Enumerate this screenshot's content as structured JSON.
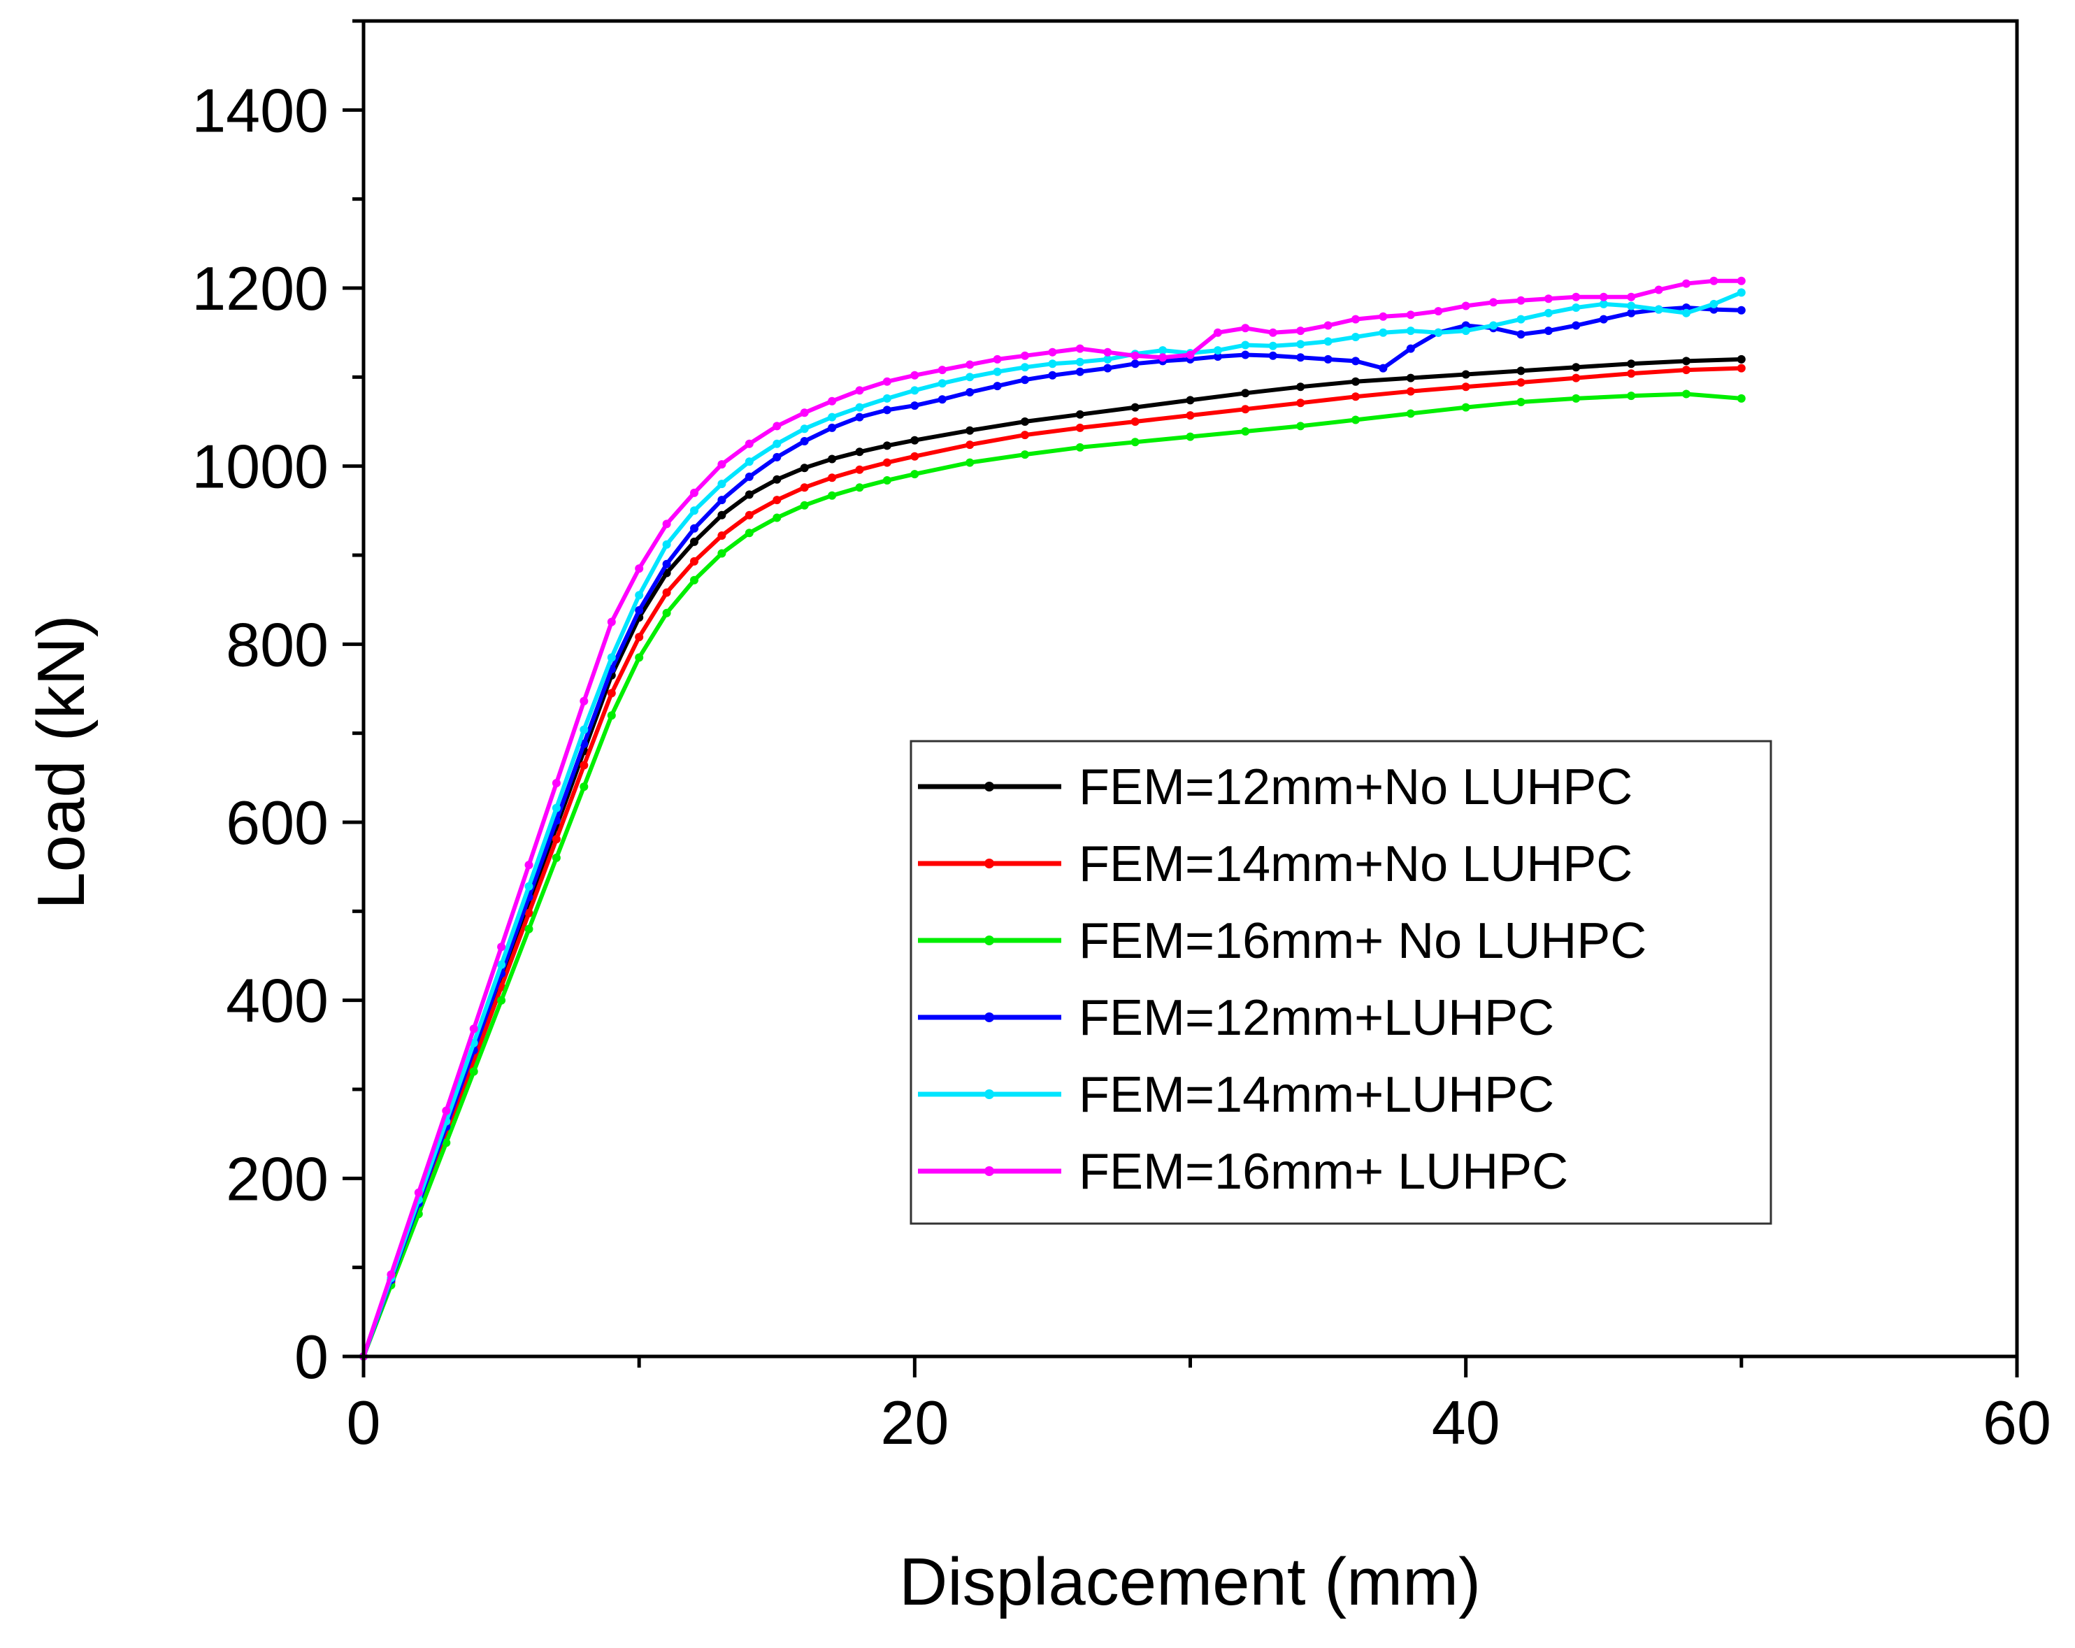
{
  "chart_data": {
    "type": "line",
    "title": "",
    "xlabel": "Displacement (mm)",
    "ylabel": "Load (kN)",
    "xlim": [
      0,
      60
    ],
    "ylim": [
      0,
      1500
    ],
    "xticks": [
      0,
      20,
      40,
      60
    ],
    "yticks": [
      0,
      200,
      400,
      600,
      800,
      1000,
      1200,
      1400
    ],
    "x_tick_labels": [
      "0",
      "20",
      "40",
      "60"
    ],
    "y_tick_labels": [
      "0",
      "200",
      "400",
      "600",
      "800",
      "1000",
      "1200",
      "1400"
    ],
    "grid": false,
    "legend_position": "center-right",
    "series": [
      {
        "name": "FEM=12mm+No LUHPC",
        "color": "#000000",
        "x": [
          0,
          1,
          2,
          3,
          4,
          5,
          6,
          7,
          8,
          9,
          10,
          11,
          12,
          13,
          14,
          15,
          16,
          17,
          18,
          19,
          20,
          22,
          24,
          26,
          28,
          30,
          32,
          34,
          36,
          38,
          40,
          42,
          44,
          46,
          48,
          50
        ],
        "y": [
          0,
          85,
          170,
          255,
          340,
          425,
          510,
          595,
          680,
          765,
          830,
          880,
          915,
          945,
          968,
          985,
          998,
          1008,
          1016,
          1023,
          1029,
          1040,
          1050,
          1058,
          1066,
          1074,
          1082,
          1089,
          1095,
          1099,
          1103,
          1107,
          1111,
          1115,
          1118,
          1120
        ]
      },
      {
        "name": "FEM=14mm+No LUHPC",
        "color": "#ff0000",
        "x": [
          0,
          1,
          2,
          3,
          4,
          5,
          6,
          7,
          8,
          9,
          10,
          11,
          12,
          13,
          14,
          15,
          16,
          17,
          18,
          19,
          20,
          22,
          24,
          26,
          28,
          30,
          32,
          34,
          36,
          38,
          40,
          42,
          44,
          46,
          48,
          50
        ],
        "y": [
          0,
          83,
          166,
          249,
          332,
          415,
          498,
          581,
          664,
          745,
          808,
          858,
          893,
          922,
          945,
          962,
          976,
          987,
          996,
          1004,
          1011,
          1024,
          1035,
          1043,
          1050,
          1057,
          1064,
          1071,
          1078,
          1084,
          1089,
          1094,
          1099,
          1104,
          1108,
          1110
        ]
      },
      {
        "name": "FEM=16mm+ No LUHPC",
        "color": "#00ee00",
        "x": [
          0,
          1,
          2,
          3,
          4,
          5,
          6,
          7,
          8,
          9,
          10,
          11,
          12,
          13,
          14,
          15,
          16,
          17,
          18,
          19,
          20,
          22,
          24,
          26,
          28,
          30,
          32,
          34,
          36,
          38,
          40,
          42,
          44,
          46,
          48,
          50
        ],
        "y": [
          0,
          80,
          160,
          240,
          320,
          400,
          480,
          560,
          640,
          720,
          785,
          835,
          872,
          902,
          925,
          942,
          956,
          967,
          976,
          984,
          991,
          1004,
          1013,
          1021,
          1027,
          1033,
          1039,
          1045,
          1052,
          1059,
          1066,
          1072,
          1076,
          1079,
          1081,
          1076
        ]
      },
      {
        "name": "FEM=12mm+LUHPC",
        "color": "#0000ff",
        "x": [
          0,
          1,
          2,
          3,
          4,
          5,
          6,
          7,
          8,
          9,
          10,
          11,
          12,
          13,
          14,
          15,
          16,
          17,
          18,
          19,
          20,
          21,
          22,
          23,
          24,
          25,
          26,
          27,
          28,
          29,
          30,
          31,
          32,
          33,
          34,
          35,
          36,
          37,
          38,
          39,
          40,
          41,
          42,
          43,
          44,
          45,
          46,
          47,
          48,
          49,
          50
        ],
        "y": [
          0,
          86,
          172,
          258,
          344,
          430,
          516,
          602,
          688,
          772,
          838,
          890,
          930,
          962,
          988,
          1010,
          1028,
          1043,
          1055,
          1063,
          1068,
          1075,
          1083,
          1090,
          1097,
          1102,
          1106,
          1110,
          1115,
          1118,
          1120,
          1123,
          1125,
          1124,
          1122,
          1120,
          1118,
          1110,
          1132,
          1150,
          1158,
          1155,
          1148,
          1152,
          1158,
          1165,
          1172,
          1176,
          1178,
          1176,
          1175
        ]
      },
      {
        "name": "FEM=14mm+LUHPC",
        "color": "#00e5ff",
        "x": [
          0,
          1,
          2,
          3,
          4,
          5,
          6,
          7,
          8,
          9,
          10,
          11,
          12,
          13,
          14,
          15,
          16,
          17,
          18,
          19,
          20,
          21,
          22,
          23,
          24,
          25,
          26,
          27,
          28,
          29,
          30,
          31,
          32,
          33,
          34,
          35,
          36,
          37,
          38,
          39,
          40,
          41,
          42,
          43,
          44,
          45,
          46,
          47,
          48,
          49,
          50
        ],
        "y": [
          0,
          88,
          176,
          264,
          352,
          440,
          528,
          616,
          704,
          785,
          855,
          912,
          950,
          980,
          1005,
          1025,
          1042,
          1055,
          1066,
          1076,
          1085,
          1093,
          1100,
          1106,
          1111,
          1115,
          1117,
          1120,
          1126,
          1130,
          1127,
          1130,
          1136,
          1135,
          1137,
          1140,
          1145,
          1150,
          1152,
          1150,
          1152,
          1158,
          1165,
          1172,
          1178,
          1182,
          1180,
          1176,
          1172,
          1182,
          1195
        ]
      },
      {
        "name": "FEM=16mm+ LUHPC",
        "color": "#ff00ff",
        "x": [
          0,
          1,
          2,
          3,
          4,
          5,
          6,
          7,
          8,
          9,
          10,
          11,
          12,
          13,
          14,
          15,
          16,
          17,
          18,
          19,
          20,
          21,
          22,
          23,
          24,
          25,
          26,
          27,
          28,
          29,
          30,
          31,
          32,
          33,
          34,
          35,
          36,
          37,
          38,
          39,
          40,
          41,
          42,
          43,
          44,
          45,
          46,
          47,
          48,
          49,
          50
        ],
        "y": [
          0,
          92,
          184,
          276,
          368,
          460,
          552,
          644,
          736,
          825,
          885,
          935,
          970,
          1002,
          1025,
          1045,
          1060,
          1073,
          1085,
          1095,
          1102,
          1108,
          1114,
          1120,
          1124,
          1128,
          1132,
          1128,
          1124,
          1122,
          1125,
          1150,
          1155,
          1150,
          1152,
          1158,
          1165,
          1168,
          1170,
          1174,
          1180,
          1184,
          1186,
          1188,
          1190,
          1190,
          1190,
          1198,
          1205,
          1208,
          1208
        ]
      }
    ]
  }
}
